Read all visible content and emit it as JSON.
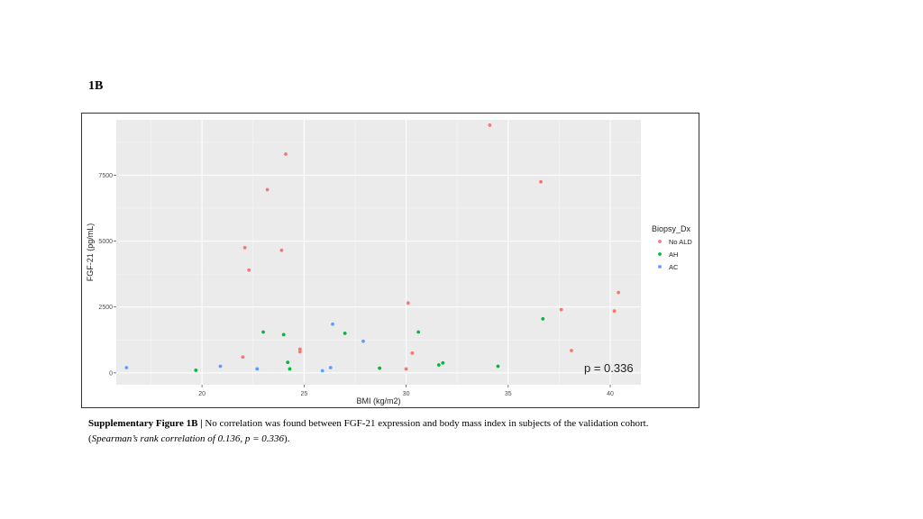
{
  "figure_label": "1B",
  "caption": {
    "label": "Supplementary Figure 1B |",
    "text": " No correlation was found between FGF-21 expression and body mass index in subjects of the validation cohort.",
    "open_paren": "(",
    "stat_italic": "Spearman’s rank correlation of 0.136, p = 0.336",
    "close_paren": ")."
  },
  "chart_data": {
    "type": "scatter",
    "title": "",
    "xlabel": "BMI (kg/m2)",
    "ylabel": "FGF-21 (pg/mL)",
    "xlim": [
      15.8,
      41.5
    ],
    "ylim": [
      -450,
      9600
    ],
    "xticks": [
      20,
      25,
      30,
      35,
      40
    ],
    "yticks": [
      0,
      2500,
      5000,
      7500
    ],
    "ytick_labels": [
      "0",
      "2500",
      "5000",
      "7500"
    ],
    "grid": true,
    "legend_title": "Biopsy_Dx",
    "legend_position": "right",
    "annotation": "p = 0.336",
    "series": [
      {
        "name": "No ALD",
        "color": "#F8766D",
        "points": [
          [
            22.0,
            600
          ],
          [
            22.1,
            4750
          ],
          [
            22.3,
            3900
          ],
          [
            23.2,
            6950
          ],
          [
            23.9,
            4650
          ],
          [
            24.1,
            8300
          ],
          [
            24.8,
            900
          ],
          [
            24.8,
            800
          ],
          [
            30.0,
            150
          ],
          [
            30.1,
            2650
          ],
          [
            30.3,
            750
          ],
          [
            34.1,
            9400
          ],
          [
            36.6,
            7250
          ],
          [
            37.6,
            2400
          ],
          [
            38.1,
            850
          ],
          [
            40.2,
            2350
          ],
          [
            40.4,
            3050
          ]
        ]
      },
      {
        "name": "AH",
        "color": "#00BA38",
        "points": [
          [
            19.7,
            100
          ],
          [
            23.0,
            1550
          ],
          [
            24.0,
            1450
          ],
          [
            24.2,
            400
          ],
          [
            24.3,
            150
          ],
          [
            27.0,
            1500
          ],
          [
            28.7,
            180
          ],
          [
            30.6,
            1550
          ],
          [
            31.6,
            300
          ],
          [
            31.8,
            380
          ],
          [
            34.5,
            250
          ],
          [
            36.7,
            2050
          ]
        ]
      },
      {
        "name": "AC",
        "color": "#619CFF",
        "points": [
          [
            16.3,
            200
          ],
          [
            20.9,
            250
          ],
          [
            22.7,
            150
          ],
          [
            25.9,
            80
          ],
          [
            26.3,
            200
          ],
          [
            26.4,
            1850
          ],
          [
            27.9,
            1200
          ]
        ]
      }
    ]
  }
}
